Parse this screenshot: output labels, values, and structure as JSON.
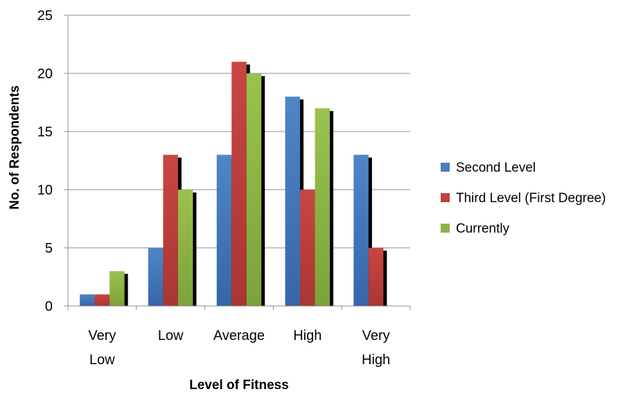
{
  "chart_data": {
    "type": "bar",
    "title": "",
    "xlabel": "Level of Fitness",
    "ylabel": "No. of Respondents",
    "categories": [
      [
        "Very",
        "Low"
      ],
      [
        "Low"
      ],
      [
        "Average"
      ],
      [
        "High"
      ],
      [
        "Very",
        "High"
      ]
    ],
    "series": [
      {
        "name": "Second Level",
        "values": [
          1,
          5,
          13,
          18,
          13
        ],
        "color": "#4a7ebf"
      },
      {
        "name": "Third Level (First Degree)",
        "values": [
          1,
          13,
          21,
          10,
          5
        ],
        "color": "#c0413e"
      },
      {
        "name": "Currently",
        "values": [
          3,
          10,
          20,
          17,
          0
        ],
        "color": "#8fb445"
      }
    ],
    "ylim": [
      0,
      25
    ],
    "yticks": [
      0,
      5,
      10,
      15,
      20,
      25
    ],
    "grid": true,
    "legend_position": "right"
  }
}
